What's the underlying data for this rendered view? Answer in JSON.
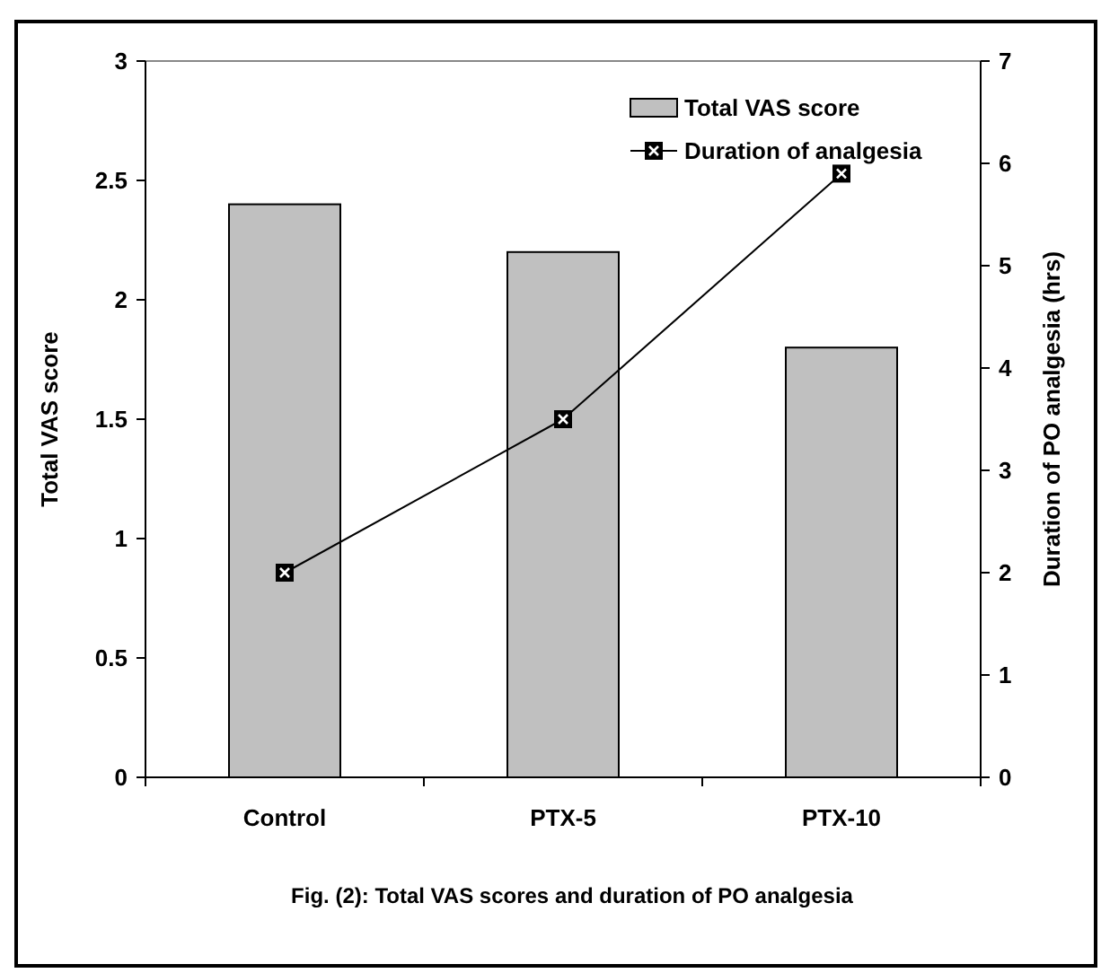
{
  "chart_data": {
    "type": "bar",
    "categories": [
      "Control",
      "PTX-5",
      "PTX-10"
    ],
    "series": [
      {
        "name": "Total VAS score",
        "type": "bar",
        "color": "#c0c0c0",
        "values": [
          2.4,
          2.2,
          1.8
        ]
      },
      {
        "name": "Duration of analgesia",
        "type": "line",
        "axis": "y2",
        "color": "#000000",
        "values": [
          2,
          3.5,
          5.9
        ],
        "marker": "square"
      }
    ],
    "ylabel": "Total VAS score",
    "y2label": "Duration of PO analgesia (hrs)",
    "ylim": [
      0,
      3
    ],
    "yticks": [
      0,
      0.5,
      1,
      1.5,
      2,
      2.5,
      3
    ],
    "y2lim": [
      0,
      7
    ],
    "y2ticks": [
      0,
      1,
      2,
      3,
      4,
      5,
      6,
      7
    ],
    "legend": "top right",
    "grid": false,
    "annotations": [
      "Fig. (2): Total VAS scores and duration of PO analgesia"
    ]
  }
}
